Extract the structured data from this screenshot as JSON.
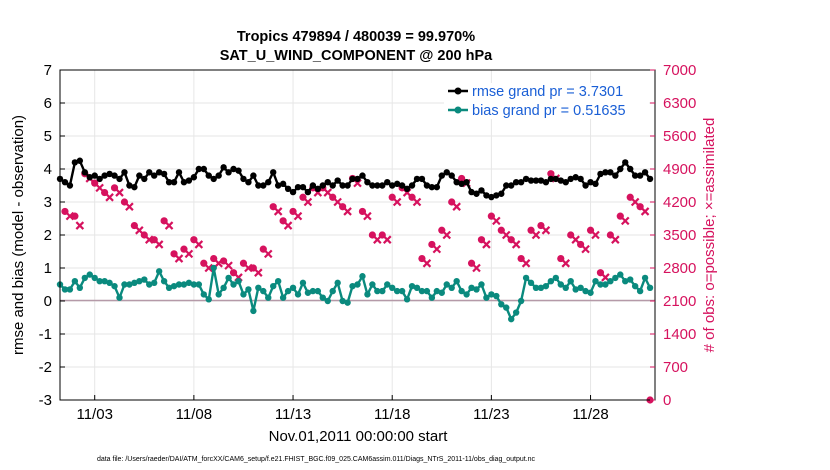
{
  "chart_data": {
    "type": "line",
    "title": "Tropics 479894 / 480039 = 99.970%",
    "subtitle": "SAT_U_WIND_COMPONENT @ 200 hPa",
    "xlabel": "Nov.01,2011 00:00:00 start",
    "ylabel": "rmse and bias (model - observation)",
    "ylabel_right": "# of obs: o=possible; ×=assimilated",
    "footer": "data file: /Users/raeder/DAI/ATM_forcXX/CAM6_setup/f.e21.FHIST_BGC.f09_025.CAM6assim.011/Diags_NTrS_2011-11/obs_diag_output.nc",
    "ylim": [
      -3,
      7
    ],
    "ylim_right": [
      0,
      7000
    ],
    "xlim": [
      1.25,
      31.25
    ],
    "yticks": [
      "-3",
      "-2",
      "-1",
      "0",
      "1",
      "2",
      "3",
      "4",
      "5",
      "6",
      "7"
    ],
    "yticks_right": [
      "0",
      "700",
      "1400",
      "2100",
      "2800",
      "3500",
      "4200",
      "4900",
      "5600",
      "6300",
      "7000"
    ],
    "xticks": [
      {
        "value": 3,
        "label": "11/03"
      },
      {
        "value": 8,
        "label": "11/08"
      },
      {
        "value": 13,
        "label": "11/13"
      },
      {
        "value": 18,
        "label": "11/18"
      },
      {
        "value": 23,
        "label": "11/23"
      },
      {
        "value": 28,
        "label": "11/28"
      }
    ],
    "grid": true,
    "legend_position": "top-right",
    "series": [
      {
        "name": "rmse grand pr = 3.7301",
        "axis": "left",
        "color": "#000000",
        "x": [
          1.25,
          1.5,
          1.75,
          2,
          2.25,
          2.5,
          2.75,
          3,
          3.25,
          3.5,
          3.75,
          4,
          4.25,
          4.5,
          4.75,
          5,
          5.25,
          5.5,
          5.75,
          6,
          6.25,
          6.5,
          6.75,
          7,
          7.25,
          7.5,
          7.75,
          8,
          8.25,
          8.5,
          8.75,
          9,
          9.25,
          9.5,
          9.75,
          10,
          10.25,
          10.5,
          10.75,
          11,
          11.25,
          11.5,
          11.75,
          12,
          12.25,
          12.5,
          12.75,
          13,
          13.25,
          13.5,
          13.75,
          14,
          14.25,
          14.5,
          14.75,
          15,
          15.25,
          15.5,
          15.75,
          16,
          16.25,
          16.5,
          16.75,
          17,
          17.25,
          17.5,
          17.75,
          18,
          18.25,
          18.5,
          18.75,
          19,
          19.25,
          19.5,
          19.75,
          20,
          20.25,
          20.5,
          20.75,
          21,
          21.25,
          21.5,
          21.75,
          22,
          22.25,
          22.5,
          22.75,
          23,
          23.25,
          23.5,
          23.75,
          24,
          24.25,
          24.5,
          24.75,
          25,
          25.25,
          25.5,
          25.75,
          26,
          26.25,
          26.5,
          26.75,
          27,
          27.25,
          27.5,
          27.75,
          28,
          28.25,
          28.5,
          28.75,
          29,
          29.25,
          29.5,
          29.75,
          30,
          30.25,
          30.5,
          30.75,
          31
        ],
        "values": [
          3.7,
          3.6,
          3.5,
          4.2,
          4.25,
          3.9,
          3.75,
          3.8,
          3.7,
          3.8,
          3.85,
          3.8,
          3.7,
          3.9,
          3.5,
          3.45,
          3.8,
          3.7,
          3.9,
          3.8,
          3.9,
          3.85,
          3.6,
          3.6,
          3.9,
          3.6,
          3.65,
          3.75,
          4.0,
          4.0,
          3.8,
          3.7,
          3.8,
          4.05,
          3.9,
          4.0,
          3.95,
          3.7,
          3.6,
          3.8,
          3.5,
          3.5,
          3.6,
          3.9,
          3.5,
          3.55,
          3.4,
          3.3,
          3.45,
          3.45,
          3.3,
          3.5,
          3.4,
          3.5,
          3.6,
          3.5,
          3.65,
          3.5,
          3.5,
          3.7,
          3.7,
          3.8,
          3.6,
          3.5,
          3.5,
          3.5,
          3.6,
          3.5,
          3.55,
          3.5,
          3.4,
          3.5,
          3.7,
          3.7,
          3.5,
          3.45,
          3.45,
          3.8,
          3.9,
          3.8,
          3.6,
          3.55,
          3.6,
          3.3,
          3.25,
          3.35,
          3.2,
          3.15,
          3.2,
          3.25,
          3.5,
          3.5,
          3.6,
          3.6,
          3.7,
          3.65,
          3.65,
          3.65,
          3.6,
          3.7,
          3.7,
          3.65,
          3.6,
          3.7,
          3.75,
          3.7,
          3.5,
          3.6,
          3.55,
          3.85,
          3.9,
          3.9,
          3.8,
          4.0,
          4.2,
          4.0,
          3.8,
          3.8,
          3.9,
          3.7
        ]
      },
      {
        "name": "bias grand pr = 0.51635",
        "axis": "left",
        "color": "#0a8a7e",
        "x": [
          1.25,
          1.5,
          1.75,
          2,
          2.25,
          2.5,
          2.75,
          3,
          3.25,
          3.5,
          3.75,
          4,
          4.25,
          4.5,
          4.75,
          5,
          5.25,
          5.5,
          5.75,
          6,
          6.25,
          6.5,
          6.75,
          7,
          7.25,
          7.5,
          7.75,
          8,
          8.25,
          8.5,
          8.75,
          9,
          9.25,
          9.5,
          9.75,
          10,
          10.25,
          10.5,
          10.75,
          11,
          11.25,
          11.5,
          11.75,
          12,
          12.25,
          12.5,
          12.75,
          13,
          13.25,
          13.5,
          13.75,
          14,
          14.25,
          14.5,
          14.75,
          15,
          15.25,
          15.5,
          15.75,
          16,
          16.25,
          16.5,
          16.75,
          17,
          17.25,
          17.5,
          17.75,
          18,
          18.25,
          18.5,
          18.75,
          19,
          19.25,
          19.5,
          19.75,
          20,
          20.25,
          20.5,
          20.75,
          21,
          21.25,
          21.5,
          21.75,
          22,
          22.25,
          22.5,
          22.75,
          23,
          23.25,
          23.5,
          23.75,
          24,
          24.25,
          24.5,
          24.75,
          25,
          25.25,
          25.5,
          25.75,
          26,
          26.25,
          26.5,
          26.75,
          27,
          27.25,
          27.5,
          27.75,
          28,
          28.25,
          28.5,
          28.75,
          29,
          29.25,
          29.5,
          29.75,
          30,
          30.25,
          30.5,
          30.75,
          31
        ],
        "values": [
          0.5,
          0.35,
          0.35,
          0.6,
          0.4,
          0.7,
          0.8,
          0.7,
          0.6,
          0.6,
          0.55,
          0.45,
          0.1,
          0.5,
          0.5,
          0.55,
          0.6,
          0.65,
          0.5,
          0.55,
          0.9,
          0.6,
          0.4,
          0.45,
          0.5,
          0.5,
          0.55,
          0.5,
          0.5,
          0.2,
          0.05,
          1.0,
          0.2,
          0.4,
          0.7,
          0.5,
          0.6,
          0.2,
          0.35,
          -0.3,
          0.4,
          0.3,
          0.1,
          0.45,
          0.6,
          0.1,
          0.3,
          0.4,
          0.2,
          0.55,
          0.25,
          0.3,
          0.3,
          0.1,
          0.0,
          0.3,
          0.55,
          0.0,
          -0.05,
          0.45,
          0.5,
          0.75,
          0.2,
          0.5,
          0.3,
          0.3,
          0.5,
          0.4,
          0.3,
          0.3,
          0.05,
          0.45,
          0.4,
          0.3,
          0.3,
          0.1,
          0.3,
          0.25,
          0.5,
          0.4,
          0.6,
          0.3,
          0.2,
          0.4,
          0.35,
          0.5,
          0.1,
          0.2,
          0.15,
          -0.1,
          -0.2,
          -0.55,
          -0.35,
          0.0,
          0.7,
          0.55,
          0.4,
          0.4,
          0.45,
          0.6,
          0.7,
          0.5,
          0.4,
          0.6,
          0.35,
          0.4,
          0.3,
          0.25,
          0.6,
          0.5,
          0.5,
          0.6,
          0.7,
          0.8,
          0.6,
          0.65,
          0.45,
          0.3,
          0.7,
          0.4
        ]
      },
      {
        "name": "obs possible",
        "axis": "right",
        "color": "#d6125e",
        "x": [
          1.5,
          2.0,
          2.5,
          3.0,
          3.5,
          4.0,
          4.5,
          5.0,
          5.5,
          6.0,
          6.5,
          7.0,
          7.5,
          8.0,
          8.5,
          9.0,
          9.5,
          10.0,
          10.5,
          11.0,
          11.5,
          12.0,
          12.5,
          13.0,
          13.5,
          14.0,
          14.5,
          15.0,
          15.5,
          16.0,
          16.5,
          17.0,
          17.5,
          18.0,
          18.5,
          19.0,
          19.5,
          20.0,
          20.5,
          21.0,
          21.5,
          22.0,
          22.5,
          23.0,
          23.5,
          24.0,
          24.5,
          25.0,
          25.5,
          26.0,
          26.5,
          27.0,
          27.5,
          28.0,
          28.5,
          29.0,
          29.5,
          30.0,
          30.5,
          31.0
        ],
        "values": [
          4000,
          3900,
          4800,
          4600,
          4400,
          4500,
          4200,
          3700,
          3500,
          3400,
          3800,
          3100,
          3200,
          3400,
          2900,
          3000,
          2950,
          2700,
          2900,
          2800,
          3200,
          4100,
          3800,
          4000,
          4300,
          4500,
          4500,
          4300,
          4100,
          4700,
          4000,
          3500,
          3500,
          4300,
          4500,
          4300,
          3000,
          3300,
          3600,
          4200,
          4700,
          2900,
          3400,
          3900,
          3600,
          3400,
          3000,
          3600,
          3700,
          4800,
          3000,
          3500,
          3300,
          3600,
          2700,
          3500,
          3900,
          4300,
          4100,
          0
        ]
      },
      {
        "name": "obs assimilated",
        "axis": "right",
        "color": "#d6125e",
        "x": [
          1.75,
          2.25,
          2.75,
          3.25,
          3.75,
          4.25,
          4.75,
          5.25,
          5.75,
          6.25,
          6.75,
          7.25,
          7.75,
          8.25,
          8.75,
          9.25,
          9.75,
          10.25,
          10.75,
          11.25,
          11.75,
          12.25,
          12.75,
          13.25,
          13.75,
          14.25,
          14.75,
          15.25,
          15.75,
          16.25,
          16.75,
          17.25,
          17.75,
          18.25,
          18.75,
          19.25,
          19.75,
          20.25,
          20.75,
          21.25,
          21.75,
          22.25,
          22.75,
          23.25,
          23.75,
          24.25,
          24.75,
          25.25,
          25.75,
          26.25,
          26.75,
          27.25,
          27.75,
          28.25,
          28.75,
          29.25,
          29.75,
          30.25,
          30.75
        ],
        "values": [
          3900,
          3700,
          4700,
          4500,
          4300,
          4400,
          4100,
          3600,
          3400,
          3300,
          3700,
          3000,
          3100,
          3300,
          2800,
          2900,
          2850,
          2600,
          2800,
          2700,
          3100,
          4000,
          3700,
          3900,
          4200,
          4400,
          4400,
          4200,
          4000,
          4600,
          3900,
          3400,
          3400,
          4200,
          4400,
          4200,
          2900,
          3200,
          3500,
          4100,
          4600,
          2800,
          3300,
          3800,
          3500,
          3300,
          2900,
          3500,
          3600,
          4700,
          2900,
          3400,
          3200,
          3500,
          2600,
          3400,
          3800,
          4200,
          4000
        ]
      }
    ]
  }
}
